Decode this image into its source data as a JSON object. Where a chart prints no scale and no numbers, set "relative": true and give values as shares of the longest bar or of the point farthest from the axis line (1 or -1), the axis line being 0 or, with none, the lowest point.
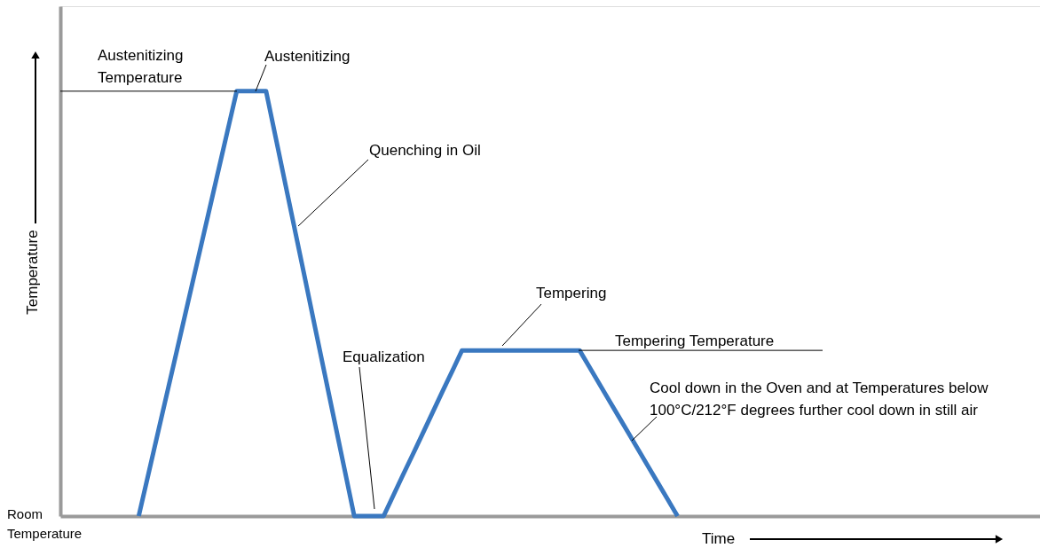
{
  "chart_data": {
    "type": "line",
    "relative": true,
    "xlabel": "Time",
    "ylabel": "Temperature",
    "categories": [
      null,
      null,
      null,
      null,
      null,
      null,
      null,
      null,
      null,
      null,
      null,
      null,
      null,
      null,
      null,
      null,
      null,
      null,
      null,
      null,
      null,
      null,
      null,
      null,
      null,
      null,
      null,
      null,
      null,
      null,
      null,
      null,
      null,
      null,
      null,
      null,
      null,
      null,
      null,
      null,
      null,
      null,
      null,
      null,
      null,
      null,
      null,
      null,
      null,
      null,
      null,
      null,
      null,
      null,
      null,
      null,
      null,
      null,
      null,
      null,
      null,
      null,
      null,
      null,
      null,
      null,
      null,
      null,
      null,
      null,
      null,
      null,
      null,
      null,
      null,
      null,
      null,
      null,
      null,
      null,
      null,
      null,
      null,
      null,
      null,
      null,
      null,
      null,
      null,
      null,
      null,
      null,
      null,
      null,
      null,
      null,
      null,
      null,
      null,
      null,
      null
    ],
    "series": [
      {
        "color": "#3a78c0",
        "values": [
          null,
          null,
          null,
          null,
          null,
          null,
          null,
          null,
          0,
          0.1,
          0.2,
          0.3,
          0.4,
          0.5,
          0.6,
          0.7,
          0.8,
          0.9,
          1,
          1,
          1,
          1,
          0.889,
          0.778,
          0.667,
          0.556,
          0.444,
          0.333,
          0.222,
          0.111,
          0,
          0,
          0,
          0,
          0.049,
          0.098,
          0.146,
          0.195,
          0.244,
          0.293,
          0.341,
          0.39,
          0.39,
          0.39,
          0.39,
          0.39,
          0.39,
          0.39,
          0.39,
          0.39,
          0.39,
          0.39,
          0.39,
          0.39,
          0.351,
          0.312,
          0.273,
          0.234,
          0.195,
          0.156,
          0.117,
          0.078,
          0.039,
          0,
          null,
          null,
          null,
          null,
          null,
          null,
          null,
          null,
          null,
          null,
          null,
          null,
          null,
          null,
          null,
          null,
          null,
          null,
          null,
          null,
          null,
          null,
          null,
          null,
          null,
          null,
          null,
          null,
          null,
          null,
          null,
          null,
          null,
          null,
          null,
          null,
          null
        ]
      }
    ],
    "ref_lines": [
      {
        "axis": "y",
        "value": 1,
        "label": "Austenitizing Temperature"
      },
      {
        "axis": "y",
        "value": 0.39,
        "label": "Tempering Temperature"
      }
    ],
    "annotations": [
      "Austenitizing",
      "Quenching in Oil",
      "Equalization",
      "Tempering",
      "Cool down in the Oven and at Temperatures below 100°C/212°F degrees further cool down in still air",
      "Room Temperature"
    ]
  }
}
